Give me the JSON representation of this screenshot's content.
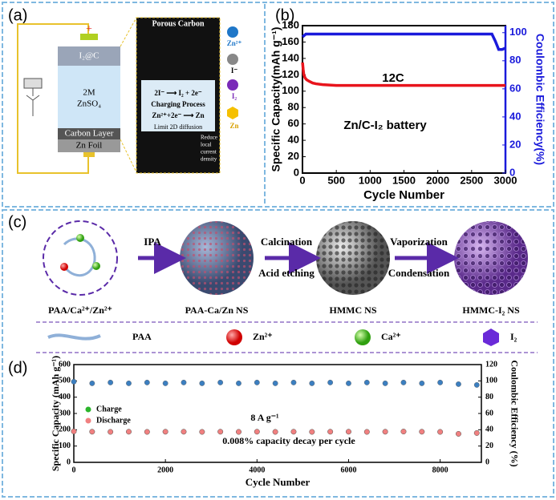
{
  "panel_a": {
    "label": "(a)",
    "cathode": "I₂@C",
    "electrolyte_1": "2M",
    "electrolyte_2": "ZnSO₄",
    "carbon_layer": "Carbon Layer",
    "anode": "Zn Foil",
    "zoom_title": "Porous Carbon",
    "legend": [
      "Zn²⁺",
      "I⁻",
      "I₂",
      "Zn"
    ],
    "reaction_1": "2I⁻ ⟶ I₂ + 2e⁻",
    "process": "Charging Process",
    "reaction_2": "Zn²⁺+2e⁻ ⟶ Zn",
    "diffusion": "Limit 2D diffusion",
    "density": [
      "Reduce",
      "local",
      "current",
      "density"
    ]
  },
  "panel_c": {
    "label": "(c)",
    "step_1": "IPA",
    "step_2_top": "Calcination",
    "step_2_bottom": "Acid etching",
    "step_3_top": "Vaporization",
    "step_3_bottom": "Condensation",
    "products": [
      "PAA/Ca²⁺/Zn²⁺",
      "PAA-Ca/Zn NS",
      "HMMC NS",
      "HMMC-I₂ NS"
    ],
    "legend": [
      "PAA",
      "Zn²⁺",
      "Ca²⁺",
      "I₂"
    ]
  },
  "chart_data": [
    {
      "type": "line",
      "panel_label": "(b)",
      "xlabel": "Cycle Number",
      "ylabel": "Specific Capacity(mAh g⁻¹)",
      "y2label": "Coulombic Efficiency(%)",
      "annotations": [
        "12C",
        "Zn/C-I₂ battery"
      ],
      "xlim": [
        0,
        3000
      ],
      "xticks": [
        0,
        500,
        1000,
        1500,
        2000,
        2500,
        3000
      ],
      "ylim": [
        0,
        180
      ],
      "yticks": [
        0,
        20,
        40,
        60,
        80,
        100,
        120,
        140,
        160,
        180
      ],
      "y2lim": [
        0,
        105
      ],
      "y2ticks": [
        0,
        20,
        40,
        60,
        80,
        100
      ],
      "series": [
        {
          "color": "#e8141c",
          "x": [
            1,
            10,
            20,
            40,
            60,
            100,
            150,
            200,
            300,
            500,
            800,
            1000,
            1500,
            2000,
            2500,
            3000
          ],
          "values": [
            135,
            127,
            120,
            116,
            114,
            112,
            110,
            109,
            108,
            107,
            107,
            107,
            107,
            107,
            107,
            107
          ]
        },
        {
          "color": "#1a1adb",
          "axis": "y2",
          "x": [
            1,
            50,
            500,
            1000,
            1500,
            2000,
            2500,
            2800,
            2850,
            2900,
            2950,
            3000
          ],
          "values": [
            97,
            99,
            99,
            99,
            99,
            99,
            99,
            99,
            94,
            88,
            88,
            89
          ]
        }
      ]
    },
    {
      "type": "scatter",
      "panel_label": "(d)",
      "xlabel": "Cycle Number",
      "ylabel": "Specific Capacity (mAh g⁻¹)",
      "y2label": "Coulombic Efficiency (%)",
      "annotations": [
        "8 A g⁻¹",
        "0.008% capacity decay per cycle"
      ],
      "xlim": [
        0,
        8900
      ],
      "xticks": [
        0,
        2000,
        4000,
        6000,
        8000
      ],
      "ylim": [
        0,
        600
      ],
      "yticks": [
        0,
        100,
        200,
        300,
        400,
        500,
        600
      ],
      "y2lim": [
        0,
        120
      ],
      "y2ticks": [
        0,
        20,
        40,
        60,
        80,
        100,
        120
      ],
      "legend": "upper left",
      "series": [
        {
          "name": "Charge",
          "color": "#2bb52b",
          "x": [
            0,
            400,
            800,
            1200,
            1600,
            2000,
            2400,
            2800,
            3200,
            3600,
            4000,
            4400,
            4800,
            5200,
            5600,
            6000,
            6400,
            6800,
            7200,
            7600,
            8000,
            8400,
            8800
          ],
          "values": [
            190,
            188,
            187,
            188,
            187,
            188,
            188,
            187,
            188,
            187,
            188,
            187,
            188,
            187,
            188,
            188,
            187,
            188,
            189,
            188,
            187,
            175,
            180
          ]
        },
        {
          "name": "Discharge",
          "color": "#f08080",
          "x": [
            0,
            400,
            800,
            1200,
            1600,
            2000,
            2400,
            2800,
            3200,
            3600,
            4000,
            4400,
            4800,
            5200,
            5600,
            6000,
            6400,
            6800,
            7200,
            7600,
            8000,
            8400,
            8800
          ],
          "values": [
            190,
            188,
            187,
            188,
            187,
            188,
            188,
            187,
            188,
            187,
            188,
            187,
            188,
            187,
            188,
            188,
            187,
            188,
            189,
            188,
            187,
            175,
            180
          ]
        },
        {
          "color": "#3c7fc0",
          "axis": "y2",
          "x": [
            0,
            400,
            800,
            1200,
            1600,
            2000,
            2400,
            2800,
            3200,
            3600,
            4000,
            4400,
            4800,
            5200,
            5600,
            6000,
            6400,
            6800,
            7200,
            7600,
            8000,
            8400,
            8800
          ],
          "values": [
            99,
            97,
            98,
            97,
            98,
            97,
            98,
            97,
            98,
            97,
            98,
            97,
            98,
            97,
            98,
            97,
            98,
            97,
            98,
            97,
            98,
            96,
            95
          ]
        }
      ]
    }
  ]
}
